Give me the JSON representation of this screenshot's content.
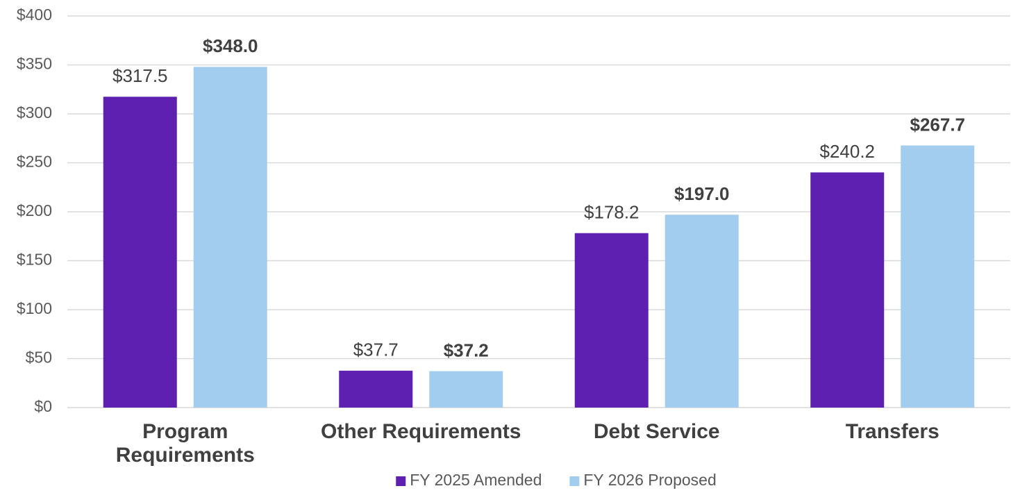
{
  "chart_data": {
    "type": "bar",
    "categories": [
      "Program Requirements",
      "Other Requirements",
      "Debt Service",
      "Transfers"
    ],
    "series": [
      {
        "name": "FY 2025 Amended",
        "color": "#5e20b0",
        "values": [
          317.5,
          37.7,
          178.2,
          240.2
        ],
        "value_labels": [
          "$317.5",
          "$37.7",
          "$178.2",
          "$240.2"
        ]
      },
      {
        "name": "FY 2026 Proposed",
        "color": "#a3cdee",
        "bold": true,
        "values": [
          348.0,
          37.2,
          197.0,
          267.7
        ],
        "value_labels": [
          "$348.0",
          "$37.2",
          "$197.0",
          "$267.7"
        ]
      }
    ],
    "ylim": [
      0,
      400
    ],
    "yticks": [
      {
        "value": 0,
        "label": "$0"
      },
      {
        "value": 50,
        "label": "$50"
      },
      {
        "value": 100,
        "label": "$100"
      },
      {
        "value": 150,
        "label": "$150"
      },
      {
        "value": 200,
        "label": "$200"
      },
      {
        "value": 250,
        "label": "$250"
      },
      {
        "value": 300,
        "label": "$300"
      },
      {
        "value": 350,
        "label": "$350"
      },
      {
        "value": 400,
        "label": "$400"
      }
    ],
    "grid": true,
    "legend": "bottom"
  }
}
